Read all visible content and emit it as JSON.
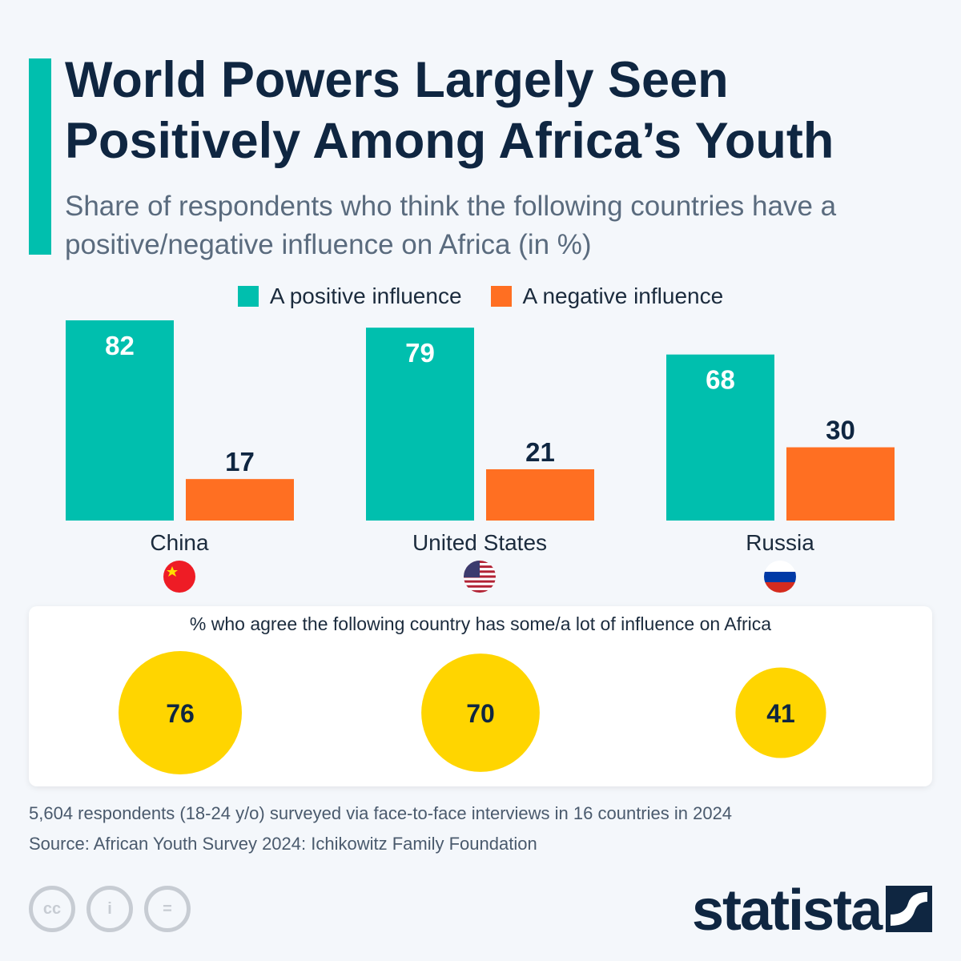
{
  "title": "World Powers Largely Seen Positively Among Africa’s Youth",
  "subtitle": "Share of respondents who think the following countries have a positive/negative influence on Africa (in %)",
  "colors": {
    "positive": "#00bfae",
    "negative": "#ff6f22",
    "bubble": "#ffd500",
    "accent": "#00bfae"
  },
  "chart_data": [
    {
      "type": "bar",
      "categories": [
        "China",
        "United States",
        "Russia"
      ],
      "series": [
        {
          "name": "A positive influence",
          "values": [
            82,
            79,
            68
          ]
        },
        {
          "name": "A negative influence",
          "values": [
            17,
            21,
            30
          ]
        }
      ],
      "ylim": [
        0,
        100
      ],
      "grid": false,
      "legend": "top",
      "flags": [
        "china-flag",
        "us-flag",
        "russia-flag"
      ]
    },
    {
      "type": "bubble",
      "title": "% who agree the following country has some/a lot of influence on Africa",
      "categories": [
        "China",
        "United States",
        "Russia"
      ],
      "values": [
        76,
        70,
        41
      ]
    }
  ],
  "footer": {
    "note": "5,604 respondents (18-24 y/o) surveyed via face-to-face interviews in 16 countries in 2024",
    "source": "Source: African Youth Survey 2024: Ichikowitz Family Foundation",
    "brand": "statista"
  }
}
